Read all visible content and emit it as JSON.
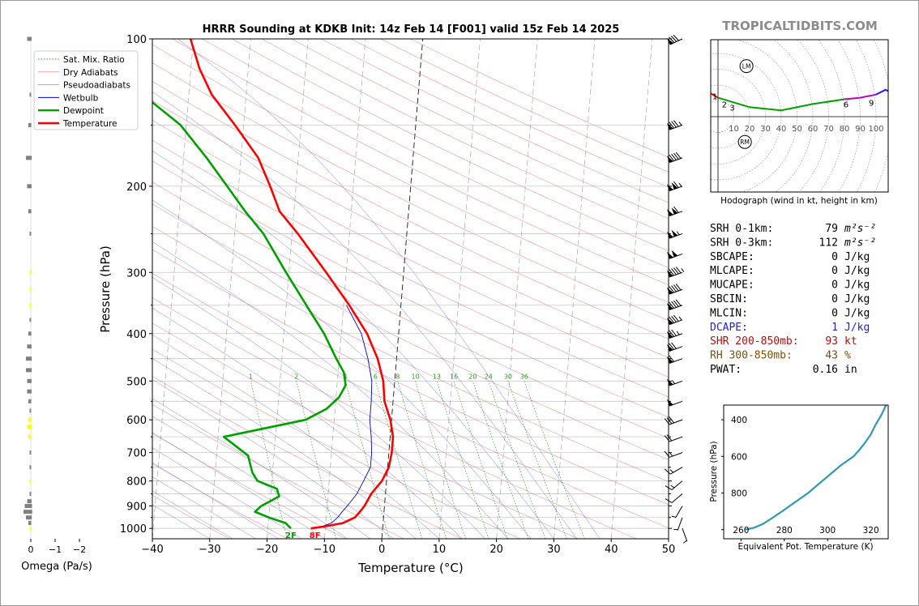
{
  "brand": "TROPICALTIDBITS.COM",
  "chart_data": [
    {
      "type": "line",
      "name": "skewt",
      "title": "HRRR Sounding at KDKB Init: 14z Feb 14 [F001] valid 15z Feb 14 2025",
      "xlabel": "Temperature (°C)",
      "ylabel": "Pressure (hPa)",
      "xlim": [
        -40,
        50
      ],
      "ylim": [
        1050,
        100
      ],
      "yscale": "log",
      "xticks": [
        "−40",
        "−30",
        "−20",
        "−10",
        "0",
        "10",
        "20",
        "30",
        "40",
        "50"
      ],
      "yticks": [
        "100",
        "200",
        "300",
        "400",
        "500",
        "600",
        "700",
        "800",
        "900",
        "1000"
      ],
      "legend_position": "top-left",
      "legend": [
        "Sat. Mix. Ratio",
        "Dry Adiabats",
        "Pseudoadiabats",
        "Wetbulb",
        "Dewpoint",
        "Temperature"
      ],
      "mixing_ratio_labels": [
        "1",
        "2",
        "4",
        "6",
        "8",
        "10",
        "13",
        "16",
        "20",
        "24",
        "30",
        "36"
      ],
      "series": [
        {
          "name": "Temperature",
          "color": "#ff0000",
          "points": [
            [
              -12.5,
              1000
            ],
            [
              -10,
              990
            ],
            [
              -7,
              975
            ],
            [
              -5,
              950
            ],
            [
              -4.2,
              925
            ],
            [
              -3.5,
              900
            ],
            [
              -2.5,
              850
            ],
            [
              -0.8,
              800
            ],
            [
              0.2,
              750
            ],
            [
              0.5,
              700
            ],
            [
              0.5,
              650
            ],
            [
              -0.2,
              600
            ],
            [
              -1.5,
              550
            ],
            [
              -2,
              500
            ],
            [
              -3.3,
              450
            ],
            [
              -5.5,
              400
            ],
            [
              -9,
              350
            ],
            [
              -13.5,
              300
            ],
            [
              -19,
              250
            ],
            [
              -22.5,
              225
            ],
            [
              -24.5,
              200
            ],
            [
              -27,
              175
            ],
            [
              -31.5,
              150
            ],
            [
              -36,
              130
            ],
            [
              -38.5,
              115
            ],
            [
              -40.5,
              100
            ]
          ]
        },
        {
          "name": "Dewpoint",
          "color": "#00a000",
          "points": [
            [
              -16,
              1000
            ],
            [
              -17,
              975
            ],
            [
              -20,
              950
            ],
            [
              -22.5,
              925
            ],
            [
              -21.5,
              900
            ],
            [
              -18.5,
              860
            ],
            [
              -19,
              830
            ],
            [
              -22.5,
              800
            ],
            [
              -23.5,
              770
            ],
            [
              -24,
              740
            ],
            [
              -24.5,
              710
            ],
            [
              -29,
              650
            ],
            [
              -15,
              600
            ],
            [
              -11.5,
              570
            ],
            [
              -9.5,
              540
            ],
            [
              -8.5,
              510
            ],
            [
              -9,
              480
            ],
            [
              -10.5,
              450
            ],
            [
              -13,
              400
            ],
            [
              -16.5,
              350
            ],
            [
              -20.5,
              300
            ],
            [
              -25,
              250
            ],
            [
              -28.5,
              225
            ],
            [
              -32,
              200
            ],
            [
              -36,
              175
            ],
            [
              -41,
              150
            ],
            [
              -48,
              130
            ],
            [
              -51.5,
              115
            ],
            [
              -55,
              100
            ]
          ]
        },
        {
          "name": "Wetbulb",
          "color": "#0000dd",
          "points": [
            [
              -12.5,
              1000
            ],
            [
              -10.5,
              990
            ],
            [
              -9,
              975
            ],
            [
              -8,
              950
            ],
            [
              -7.3,
              925
            ],
            [
              -6.5,
              900
            ],
            [
              -5,
              850
            ],
            [
              -4,
              800
            ],
            [
              -3,
              750
            ],
            [
              -3,
              700
            ],
            [
              -3.3,
              650
            ],
            [
              -3.8,
              600
            ],
            [
              -3.8,
              550
            ],
            [
              -4,
              500
            ],
            [
              -5,
              450
            ],
            [
              -6.5,
              400
            ],
            [
              -9.5,
              350
            ]
          ]
        }
      ],
      "surface_labels": {
        "dewpoint": "2F",
        "temperature": "8F"
      }
    },
    {
      "type": "bar",
      "name": "omega",
      "xlabel": "Omega (Pa/s)",
      "xticks": [
        "0",
        "−1",
        "−2"
      ],
      "bars": [
        [
          100,
          0.3,
          "#808080"
        ],
        [
          130,
          0.1,
          "#808080"
        ],
        [
          150,
          0.2,
          "#808080"
        ],
        [
          175,
          0.4,
          "#808080"
        ],
        [
          200,
          0.3,
          "#808080"
        ],
        [
          225,
          0.2,
          "#808080"
        ],
        [
          250,
          0.1,
          "#808080"
        ],
        [
          300,
          0.1,
          "#ffff00"
        ],
        [
          325,
          0.1,
          "#ffff00"
        ],
        [
          350,
          0.1,
          "#ffff00"
        ],
        [
          375,
          0.1,
          "#808080"
        ],
        [
          400,
          0.2,
          "#808080"
        ],
        [
          425,
          0.3,
          "#808080"
        ],
        [
          450,
          0.4,
          "#808080"
        ],
        [
          475,
          0.4,
          "#808080"
        ],
        [
          500,
          0.3,
          "#808080"
        ],
        [
          525,
          0.3,
          "#808080"
        ],
        [
          550,
          0.2,
          "#808080"
        ],
        [
          575,
          0.1,
          "#808080"
        ],
        [
          600,
          0.2,
          "#ffff00"
        ],
        [
          620,
          0.3,
          "#ffff00"
        ],
        [
          650,
          0.2,
          "#ffff00"
        ],
        [
          700,
          0.1,
          "#808080"
        ],
        [
          750,
          0.1,
          "#808080"
        ],
        [
          800,
          0.1,
          "#ffff00"
        ],
        [
          850,
          0.1,
          "#808080"
        ],
        [
          880,
          0.3,
          "#808080"
        ],
        [
          900,
          0.5,
          "#808080"
        ],
        [
          925,
          0.6,
          "#808080"
        ],
        [
          950,
          0.4,
          "#808080"
        ],
        [
          975,
          0.2,
          "#808080"
        ],
        [
          1000,
          0.1,
          "#ffff00"
        ]
      ]
    },
    {
      "type": "line",
      "name": "hodograph",
      "caption": "Hodograph (wind in kt, height in km)",
      "ring_labels": [
        "10",
        "20",
        "30",
        "40",
        "50",
        "60",
        "70",
        "80",
        "90",
        "100"
      ],
      "segments": [
        {
          "color": "#ff0000",
          "points": [
            [
              -10,
              12
            ],
            [
              -8,
              17
            ],
            [
              -5,
              15
            ],
            [
              0,
              12
            ]
          ]
        },
        {
          "color": "#00a000",
          "points": [
            [
              0,
              12
            ],
            [
              20,
              6
            ],
            [
              40,
              4
            ],
            [
              60,
              8
            ],
            [
              80,
              11
            ]
          ]
        },
        {
          "color": "#c000c0",
          "points": [
            [
              80,
              11
            ],
            [
              90,
              12
            ],
            [
              100,
              14
            ]
          ]
        },
        {
          "color": "#2020ff",
          "points": [
            [
              100,
              14
            ],
            [
              106,
              17
            ],
            [
              110,
              15
            ]
          ]
        }
      ],
      "height_markers": [
        [
          "1",
          -2,
          13
        ],
        [
          "2",
          4,
          8
        ],
        [
          "3",
          9,
          6
        ],
        [
          "6",
          81,
          8
        ],
        [
          "9",
          97,
          9
        ]
      ],
      "storm_motion": [
        {
          "label": "LM",
          "x": 18,
          "y": 32
        },
        {
          "label": "RM",
          "x": 17,
          "y": -16
        }
      ]
    },
    {
      "type": "line",
      "name": "theta_e",
      "xlabel": "Equivalent Pot. Temperature (K)",
      "ylabel": "Pressure (hPa)",
      "xticks": [
        "260",
        "280",
        "300",
        "320"
      ],
      "yticks": [
        "400",
        "600",
        "800"
      ],
      "color": "#2f9ab0",
      "points": [
        [
          262,
          1000
        ],
        [
          266,
          990
        ],
        [
          270,
          970
        ],
        [
          274,
          940
        ],
        [
          279,
          900
        ],
        [
          285,
          850
        ],
        [
          291,
          800
        ],
        [
          297,
          740
        ],
        [
          301,
          700
        ],
        [
          306,
          650
        ],
        [
          312,
          600
        ],
        [
          315,
          560
        ],
        [
          317,
          530
        ],
        [
          320,
          480
        ],
        [
          322,
          430
        ],
        [
          325,
          370
        ],
        [
          327,
          320
        ]
      ]
    }
  ],
  "parameters": [
    {
      "label": "SRH 0-1km:",
      "value": "79",
      "unit": "m²s⁻²",
      "color": "#000000"
    },
    {
      "label": "SRH 0-3km:",
      "value": "112",
      "unit": "m²s⁻²",
      "color": "#000000"
    },
    {
      "label": "SBCAPE:",
      "value": "0",
      "unit": "J/kg",
      "color": "#000000"
    },
    {
      "label": "MLCAPE:",
      "value": "0",
      "unit": "J/kg",
      "color": "#000000"
    },
    {
      "label": "MUCAPE:",
      "value": "0",
      "unit": "J/kg",
      "color": "#000000"
    },
    {
      "label": "SBCIN:",
      "value": "0",
      "unit": "J/kg",
      "color": "#000000"
    },
    {
      "label": "MLCIN:",
      "value": "0",
      "unit": "J/kg",
      "color": "#000000"
    },
    {
      "label": "DCAPE:",
      "value": "1",
      "unit": "J/kg",
      "color": "#2020dd"
    },
    {
      "label": "SHR 200-850mb:",
      "value": "93",
      "unit": "kt",
      "color": "#b01010"
    },
    {
      "label": "RH 300-850mb:",
      "value": "43",
      "unit": "%",
      "color": "#805000"
    },
    {
      "label": "PWAT:",
      "value": "0.16",
      "unit": "in",
      "color": "#000000"
    }
  ],
  "wind_barbs": [
    [
      100,
      245,
      80
    ],
    [
      150,
      250,
      85
    ],
    [
      175,
      250,
      90
    ],
    [
      200,
      250,
      115
    ],
    [
      225,
      250,
      110
    ],
    [
      250,
      250,
      105
    ],
    [
      275,
      250,
      100
    ],
    [
      300,
      250,
      95
    ],
    [
      325,
      250,
      90
    ],
    [
      350,
      250,
      90
    ],
    [
      375,
      250,
      85
    ],
    [
      400,
      250,
      75
    ],
    [
      425,
      250,
      70
    ],
    [
      450,
      250,
      60
    ],
    [
      500,
      250,
      55
    ],
    [
      550,
      250,
      50
    ],
    [
      600,
      250,
      30
    ],
    [
      650,
      250,
      20
    ],
    [
      700,
      250,
      15
    ],
    [
      750,
      240,
      15
    ],
    [
      800,
      230,
      15
    ],
    [
      850,
      230,
      10
    ],
    [
      900,
      210,
      5
    ],
    [
      950,
      200,
      5
    ],
    [
      1000,
      160,
      5
    ]
  ]
}
